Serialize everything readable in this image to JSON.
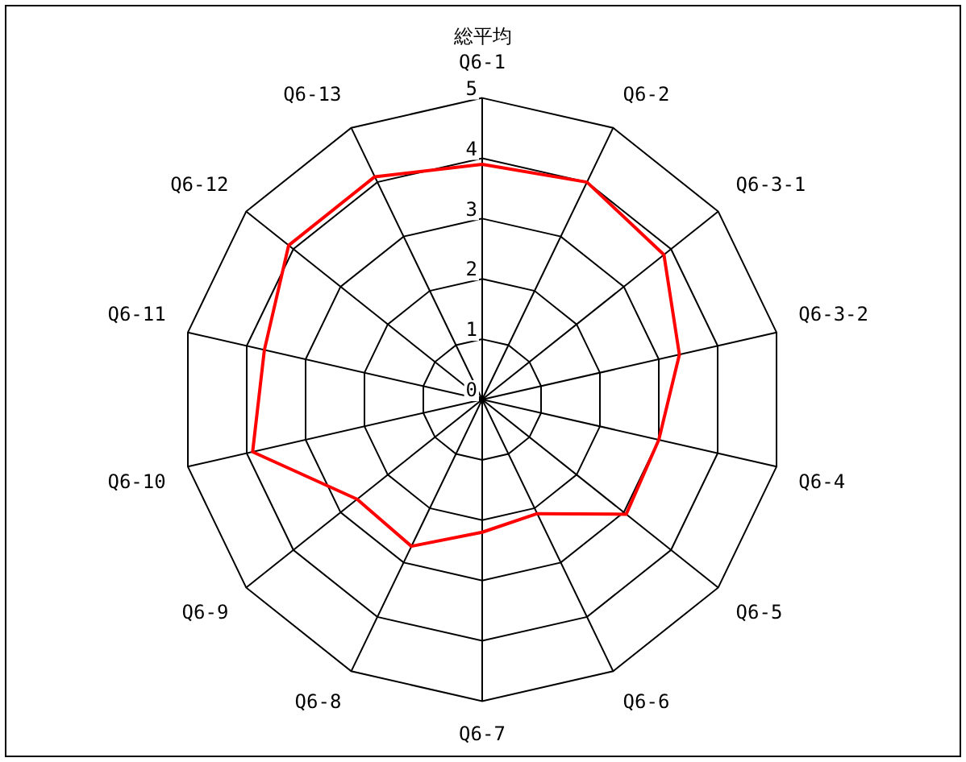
{
  "chart_data": {
    "type": "radar",
    "title": "総平均",
    "categories": [
      "Q6-1",
      "Q6-2",
      "Q6-3-1",
      "Q6-3-2",
      "Q6-4",
      "Q6-5",
      "Q6-6",
      "Q6-7",
      "Q6-8",
      "Q6-9",
      "Q6-10",
      "Q6-11",
      "Q6-12",
      "Q6-13"
    ],
    "series": [
      {
        "color": "#ff0000",
        "values": [
          3.9,
          4.0,
          3.85,
          3.35,
          3.0,
          3.05,
          2.1,
          2.2,
          2.7,
          2.65,
          3.9,
          3.7,
          4.1,
          4.1
        ]
      }
    ],
    "ylim": [
      0,
      5
    ],
    "yticks": [
      0,
      1,
      2,
      3,
      4,
      5
    ],
    "grid": true,
    "legend": false,
    "marker": "none"
  }
}
